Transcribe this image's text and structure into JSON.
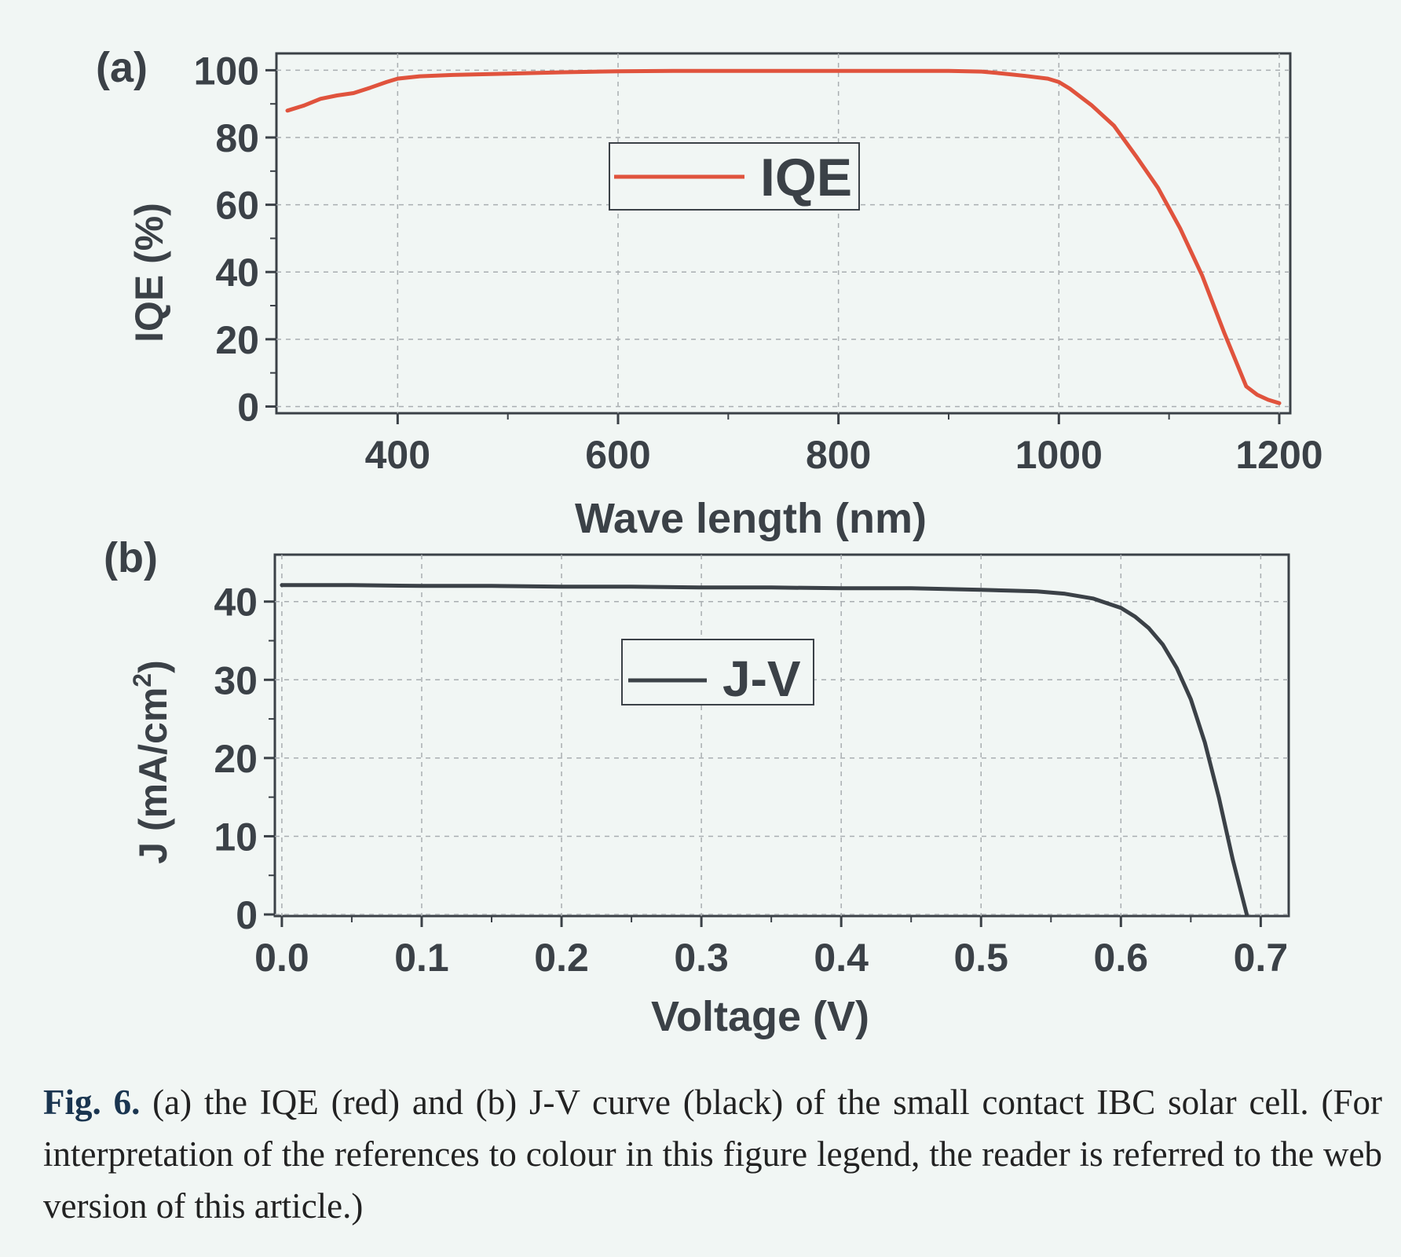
{
  "colors": {
    "iqe": "#e0533d",
    "jv": "#3b4147",
    "axis": "#3b4147",
    "grid": "#a9aeb1"
  },
  "chart_data": [
    {
      "panel_label": "(a)",
      "type": "line",
      "xlabel": "Wave length (nm)",
      "ylabel": "IQE (%)",
      "xlim": [
        290,
        1210
      ],
      "ylim": [
        -2,
        105
      ],
      "xticks": [
        400,
        600,
        800,
        1000,
        1200
      ],
      "yticks": [
        0,
        20,
        40,
        60,
        80,
        100
      ],
      "grid": true,
      "legend_position": "upper-center",
      "series": [
        {
          "name": "IQE",
          "color": "#e0533d",
          "x": [
            300,
            315,
            330,
            345,
            360,
            375,
            390,
            400,
            420,
            450,
            500,
            550,
            600,
            650,
            700,
            750,
            800,
            850,
            900,
            930,
            950,
            970,
            990,
            1000,
            1010,
            1030,
            1050,
            1070,
            1090,
            1110,
            1130,
            1150,
            1170,
            1180,
            1190,
            1200
          ],
          "y": [
            88,
            89.5,
            91.5,
            92.5,
            93.2,
            94.8,
            96.5,
            97.5,
            98.2,
            98.6,
            99,
            99.4,
            99.7,
            99.8,
            99.8,
            99.8,
            99.8,
            99.8,
            99.8,
            99.6,
            99,
            98.3,
            97.5,
            96.5,
            94.5,
            89.5,
            83.5,
            74.5,
            65,
            53,
            39,
            22,
            6,
            3.5,
            2,
            1
          ]
        }
      ]
    },
    {
      "panel_label": "(b)",
      "type": "line",
      "xlabel": "Voltage (V)",
      "ylabel": "J (mA/cm²)",
      "ylabel_base": "J (mA/cm",
      "ylabel_sup": "2",
      "ylabel_end": ")",
      "xlim": [
        -0.005,
        0.72
      ],
      "ylim": [
        -0.2,
        46
      ],
      "xticks": [
        0.0,
        0.1,
        0.2,
        0.3,
        0.4,
        0.5,
        0.6,
        0.7
      ],
      "xtick_labels": [
        "0.0",
        "0.1",
        "0.2",
        "0.3",
        "0.4",
        "0.5",
        "0.6",
        "0.7"
      ],
      "yticks": [
        0,
        10,
        20,
        30,
        40
      ],
      "grid": true,
      "legend_position": "upper-center",
      "series": [
        {
          "name": "J-V",
          "color": "#3b4147",
          "x": [
            0,
            0.05,
            0.1,
            0.15,
            0.2,
            0.25,
            0.3,
            0.35,
            0.4,
            0.45,
            0.5,
            0.52,
            0.54,
            0.56,
            0.58,
            0.6,
            0.61,
            0.62,
            0.63,
            0.64,
            0.65,
            0.66,
            0.67,
            0.68,
            0.685,
            0.69
          ],
          "y": [
            42.1,
            42.1,
            42.0,
            42.0,
            41.9,
            41.9,
            41.8,
            41.8,
            41.7,
            41.7,
            41.5,
            41.4,
            41.3,
            41.0,
            40.4,
            39.2,
            38.1,
            36.6,
            34.5,
            31.5,
            27.5,
            22.0,
            15.0,
            7.0,
            3.5,
            0.0
          ]
        }
      ]
    }
  ],
  "caption": {
    "label": "Fig. 6.",
    "text": " (a) the IQE (red) and (b) J-V curve (black) of the small contact IBC solar cell. (For interpretation of the references to colour in this figure legend, the reader is referred to the web version of this article.)"
  }
}
